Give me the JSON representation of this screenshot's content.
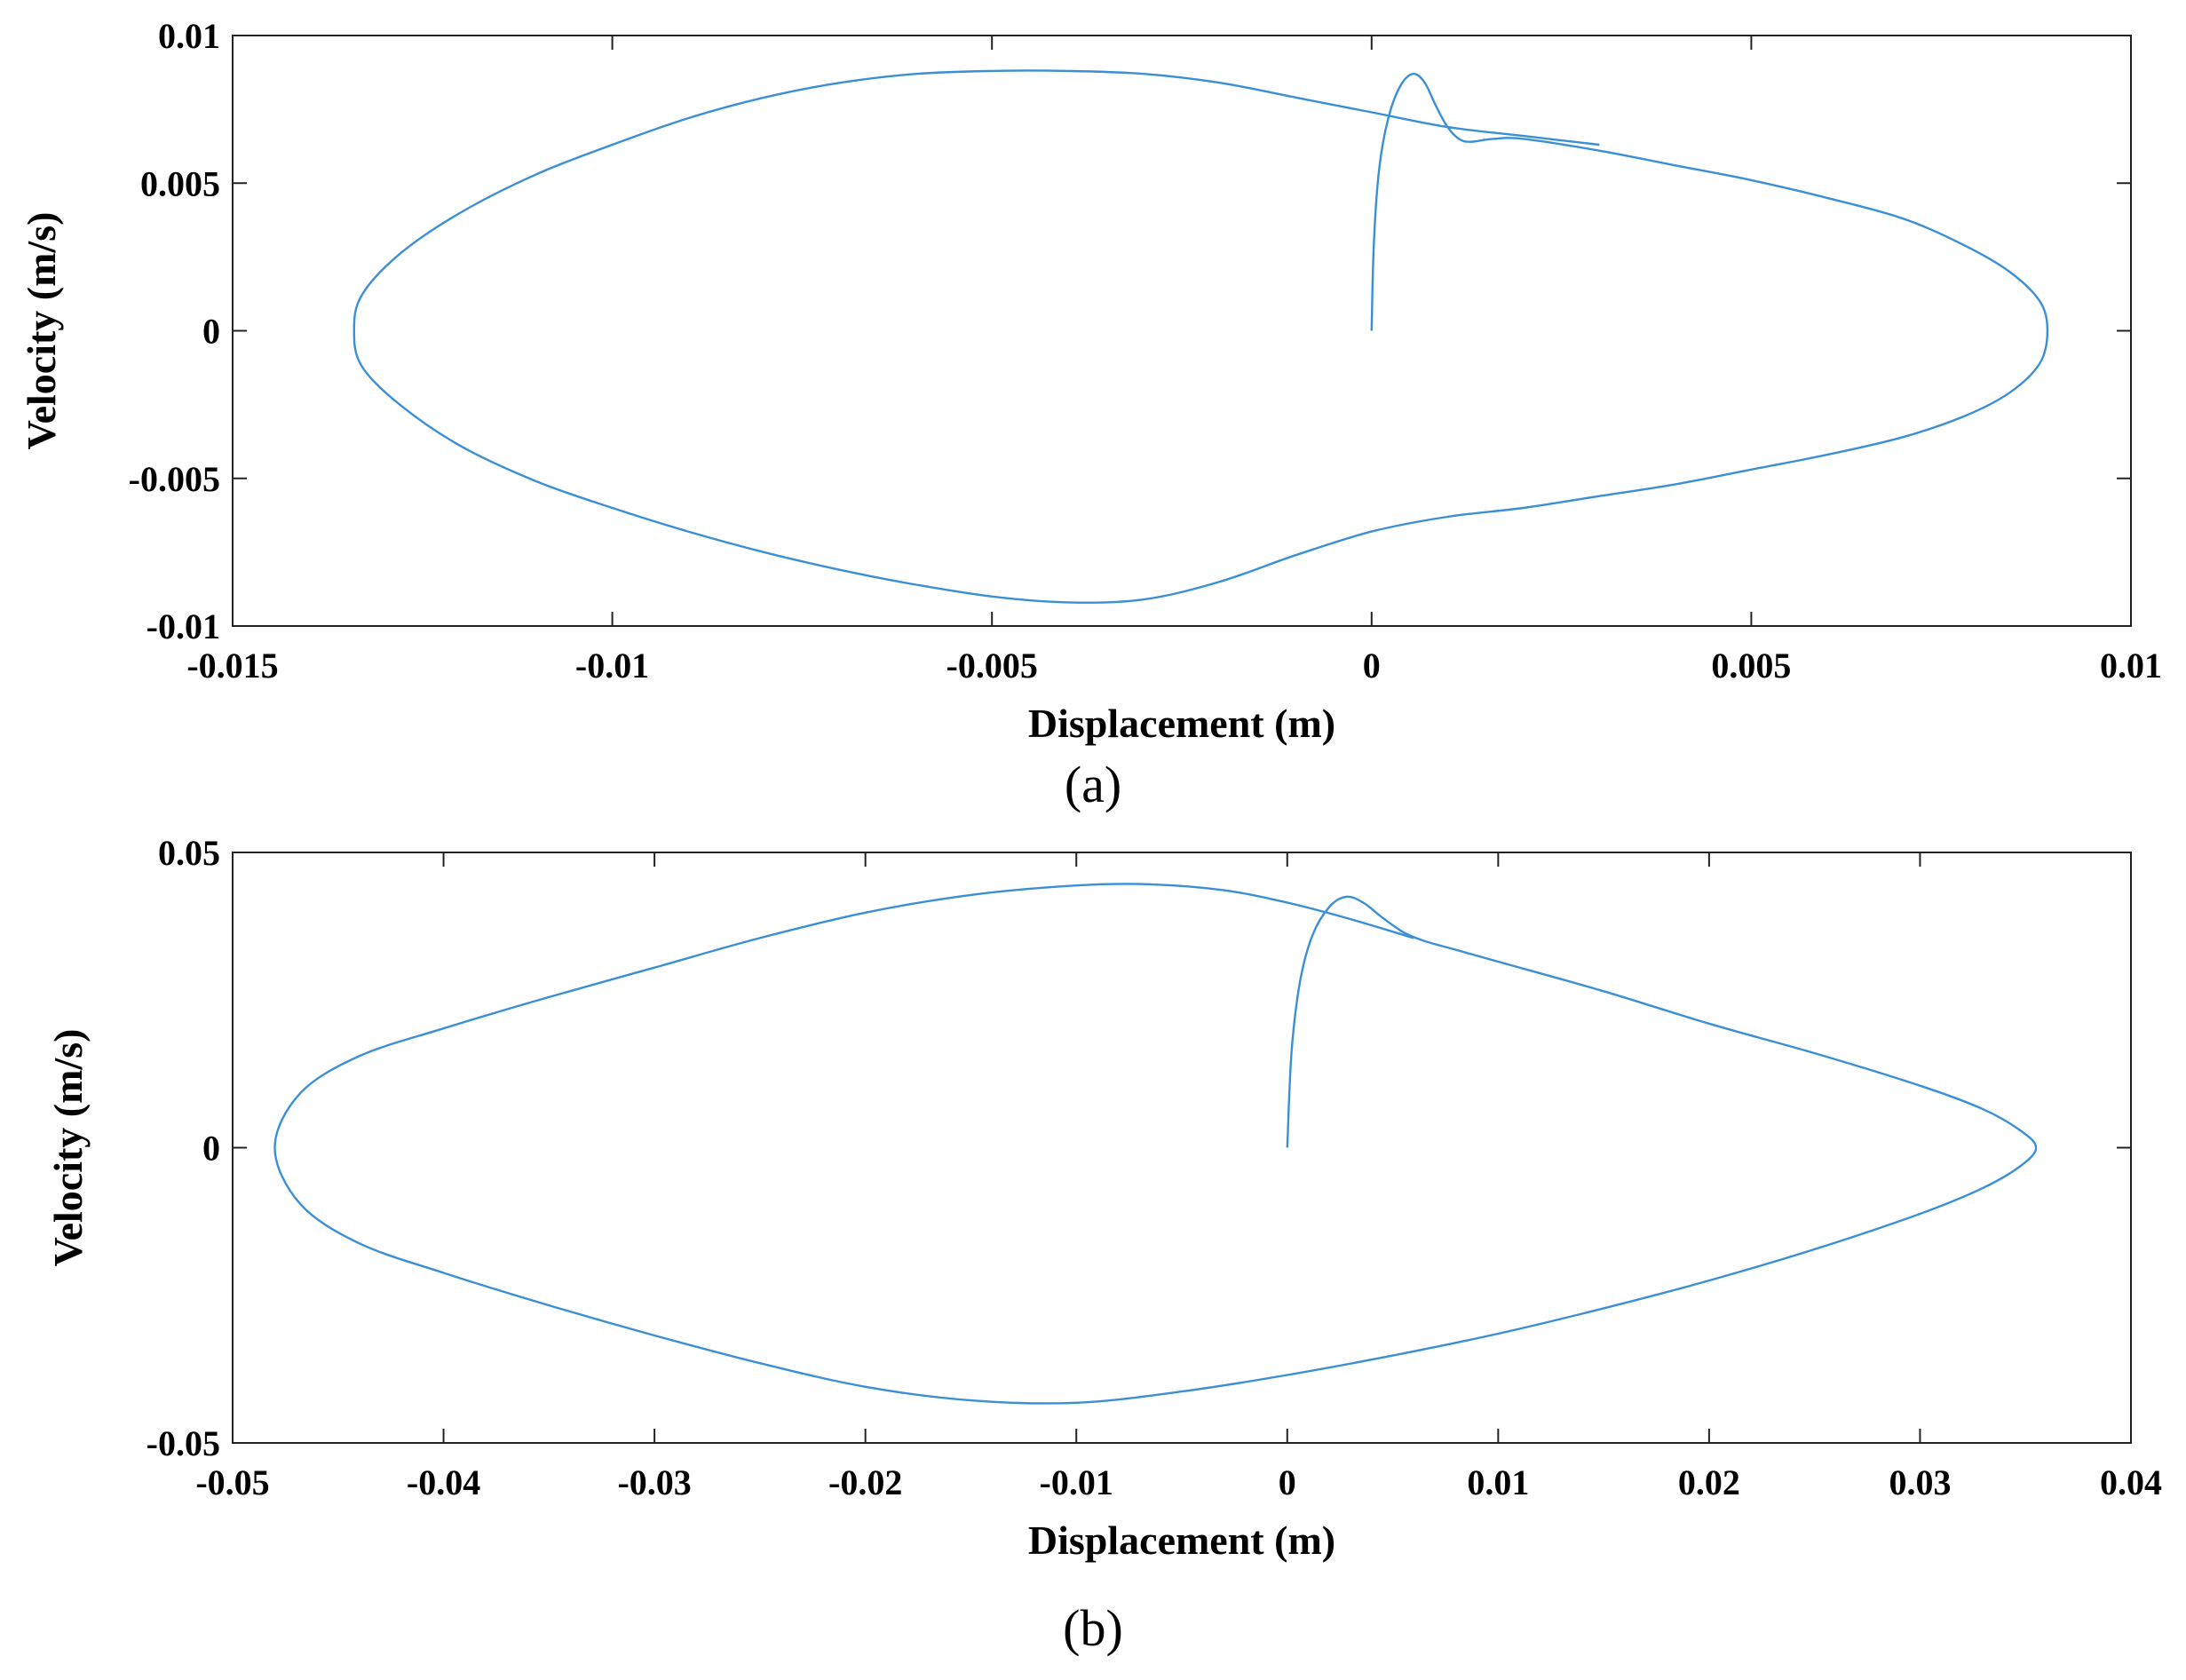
{
  "line_color": "#3a8fd6",
  "chart_data": [
    {
      "type": "line",
      "caption": "(a)",
      "xlabel": "Displacement (m)",
      "ylabel": "Velocity (m/s)",
      "xlim": [
        -0.015,
        0.01
      ],
      "ylim": [
        -0.01,
        0.01
      ],
      "x_ticks": [
        -0.015,
        -0.01,
        -0.005,
        0,
        0.005,
        0.01
      ],
      "x_tick_labels": [
        "-0.015",
        "-0.01",
        "-0.005",
        "0",
        "0.005",
        "0.01"
      ],
      "y_ticks": [
        0.01,
        0.005,
        0,
        -0.005,
        -0.01
      ],
      "y_tick_labels": [
        "0.01",
        "0.005",
        "0",
        "-0.005",
        "-0.01"
      ],
      "grid": false,
      "series": [
        {
          "x": [
            0,
            3e-05,
            0.0001,
            0.00022,
            0.00038,
            0.00055,
            0.0007,
            0.00085,
            0.001,
            0.00115,
            0.0013,
            0.0016,
            0.002,
            0.003,
            0.004,
            0.005,
            0.006,
            0.007,
            0.0078,
            0.0084,
            0.0088,
            0.0089,
            0.0088,
            0.0084,
            0.0078,
            0.007,
            0.006,
            0.005,
            0.004,
            0.003,
            0.002,
            0.001,
            0,
            -0.001,
            -0.002,
            -0.003,
            -0.004,
            -0.005,
            -0.006,
            -0.007,
            -0.008,
            -0.009,
            -0.01,
            -0.011,
            -0.012,
            -0.0128,
            -0.0133,
            -0.0134,
            -0.0133,
            -0.0128,
            -0.012,
            -0.011,
            -0.01,
            -0.009,
            -0.008,
            -0.007,
            -0.006,
            -0.005,
            -0.004,
            -0.003,
            -0.002,
            -0.001,
            0,
            0.001,
            0.002,
            0.003
          ],
          "y": [
            0,
            0.003,
            0.0055,
            0.0072,
            0.0083,
            0.0087,
            0.0084,
            0.0076,
            0.0069,
            0.0065,
            0.0064,
            0.0065,
            0.0065,
            0.0061,
            0.0056,
            0.0051,
            0.0045,
            0.0038,
            0.0029,
            0.002,
            0.001,
            0,
            -0.0011,
            -0.0021,
            -0.0029,
            -0.0036,
            -0.0042,
            -0.0047,
            -0.0052,
            -0.0056,
            -0.006,
            -0.0063,
            -0.0068,
            -0.0076,
            -0.0085,
            -0.0091,
            -0.0092,
            -0.009,
            -0.0086,
            -0.0081,
            -0.0075,
            -0.0068,
            -0.006,
            -0.0051,
            -0.0039,
            -0.0025,
            -0.0012,
            0,
            0.0012,
            0.0026,
            0.004,
            0.0053,
            0.0063,
            0.0072,
            0.0079,
            0.0084,
            0.0087,
            0.0088,
            0.0088,
            0.0087,
            0.0084,
            0.0079,
            0.0074,
            0.0069,
            0.0066,
            0.0063
          ]
        }
      ]
    },
    {
      "type": "line",
      "caption": "(b)",
      "xlabel": "Displacement (m)",
      "ylabel": "Velocity (m/s)",
      "xlim": [
        -0.05,
        0.04
      ],
      "ylim": [
        -0.05,
        0.05
      ],
      "x_ticks": [
        -0.05,
        -0.04,
        -0.03,
        -0.02,
        -0.01,
        0,
        0.01,
        0.02,
        0.03,
        0.04
      ],
      "x_tick_labels": [
        "-0.05",
        "-0.04",
        "-0.03",
        "-0.02",
        "-0.01",
        "0",
        "0.01",
        "0.02",
        "0.03",
        "0.04"
      ],
      "y_ticks": [
        0.05,
        0,
        -0.05
      ],
      "y_tick_labels": [
        "0.05",
        "0",
        "-0.05"
      ],
      "grid": false,
      "series": [
        {
          "x": [
            0,
            0.0002,
            0.0006,
            0.0012,
            0.002,
            0.0028,
            0.0036,
            0.0045,
            0.0055,
            0.0065,
            0.008,
            0.01,
            0.015,
            0.02,
            0.025,
            0.03,
            0.033,
            0.0348,
            0.0355,
            0.0348,
            0.033,
            0.03,
            0.025,
            0.02,
            0.015,
            0.01,
            0.005,
            0,
            -0.005,
            -0.01,
            -0.015,
            -0.02,
            -0.025,
            -0.03,
            -0.035,
            -0.04,
            -0.044,
            -0.0468,
            -0.048,
            -0.0468,
            -0.044,
            -0.04,
            -0.035,
            -0.03,
            -0.025,
            -0.02,
            -0.015,
            -0.01,
            -0.0065,
            -0.003,
            0,
            0.003,
            0.006
          ],
          "y": [
            0,
            0.016,
            0.028,
            0.036,
            0.0408,
            0.0425,
            0.0415,
            0.039,
            0.0365,
            0.035,
            0.0335,
            0.0315,
            0.0265,
            0.021,
            0.016,
            0.0105,
            0.0065,
            0.0028,
            0,
            -0.003,
            -0.0068,
            -0.0112,
            -0.0172,
            -0.0225,
            -0.0272,
            -0.0315,
            -0.0352,
            -0.0385,
            -0.0413,
            -0.0432,
            -0.0428,
            -0.0405,
            -0.0365,
            -0.0318,
            -0.0267,
            -0.0212,
            -0.0162,
            -0.0095,
            0,
            0.0092,
            0.0155,
            0.0202,
            0.0255,
            0.0305,
            0.0355,
            0.0398,
            0.0428,
            0.0444,
            0.0446,
            0.0436,
            0.0415,
            0.0387,
            0.0355
          ]
        }
      ]
    }
  ]
}
